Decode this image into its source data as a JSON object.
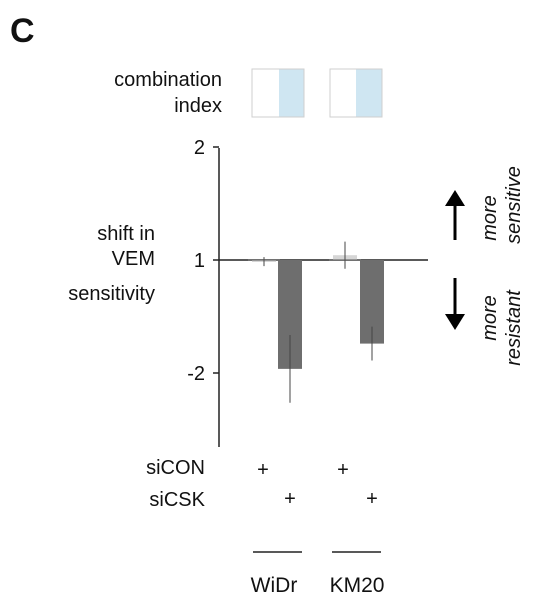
{
  "panel_label": "C",
  "ci_label_lines": [
    "combination",
    "index"
  ],
  "ylabel_lines": [
    "shift in",
    "VEM",
    "sensitivity"
  ],
  "arrow_labels": {
    "up": [
      "more",
      "sensitive"
    ],
    "down": [
      "more",
      "resistant"
    ]
  },
  "conditions": {
    "rows": [
      {
        "label": "siCON",
        "marks": [
          "+",
          "",
          "+",
          ""
        ]
      },
      {
        "label": "siCSK",
        "marks": [
          "",
          "+",
          "",
          "+"
        ]
      }
    ]
  },
  "cell_lines": [
    "WiDr",
    "KM20"
  ],
  "colors": {
    "bar_control": "#d6d6d6",
    "bar_knockdown": "#6e6e6e",
    "ci_left": "#ffffff",
    "ci_right": "#cfe6f2",
    "axis": "#222222"
  },
  "chart_data": {
    "type": "bar",
    "ylabel": "shift in VEM sensitivity",
    "yticks": [
      {
        "value": 2,
        "label": "2"
      },
      {
        "value": 1,
        "label": "1"
      },
      {
        "value": -2,
        "label": "-2"
      }
    ],
    "baseline": 1,
    "ylim_log2": [
      -1.65,
      1.0
    ],
    "groups": [
      {
        "name": "WiDr",
        "bars": [
          {
            "value": 0.99,
            "err": 0.04
          },
          {
            "value": -1.95,
            "err": 0.3
          }
        ]
      },
      {
        "name": "KM20",
        "bars": [
          {
            "value": 1.03,
            "err": 0.12
          },
          {
            "value": -1.67,
            "err": 0.15
          }
        ]
      }
    ],
    "combination_index": [
      "WiDr",
      "KM20"
    ],
    "grid": false,
    "legend": "none"
  }
}
